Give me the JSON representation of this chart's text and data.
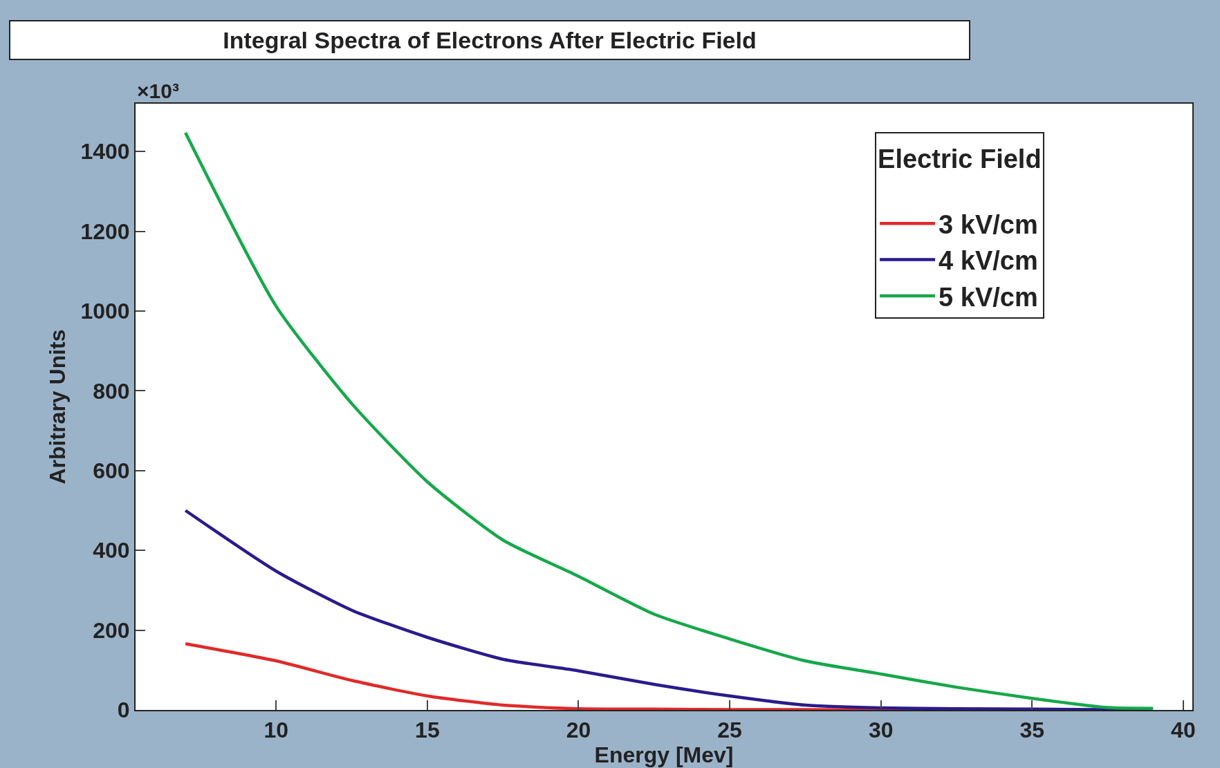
{
  "chart_data": {
    "type": "line",
    "title": "Integral Spectra of Electrons After Electric Field",
    "xlabel": "Energy [Mev]",
    "ylabel": "Arbitrary Units",
    "legend_title": "Electric Field",
    "annotations": [
      "×10³"
    ],
    "x": [
      7,
      10,
      12.5,
      15,
      17.5,
      20,
      22.5,
      25,
      27.5,
      30,
      32.5,
      35,
      37.5,
      39
    ],
    "series": [
      {
        "name": "3 kV/cm",
        "color": "#e02a2a",
        "values": [
          166,
          123,
          74,
          35,
          12,
          3,
          2,
          1,
          1,
          0,
          0,
          null,
          null,
          null
        ]
      },
      {
        "name": "4 kV/cm",
        "color": "#2a1b8c",
        "values": [
          500,
          348,
          250,
          182,
          127,
          98,
          64,
          35,
          12,
          5,
          3,
          2,
          1,
          1
        ]
      },
      {
        "name": "5 kV/cm",
        "color": "#16a84a",
        "values": [
          1447,
          1012,
          768,
          572,
          426,
          335,
          240,
          178,
          123,
          90,
          57,
          29,
          6,
          4
        ]
      }
    ],
    "xlim": [
      5.35,
      40.3
    ],
    "xticks": [
      10,
      15,
      20,
      25,
      30,
      35,
      40
    ],
    "ylim": [
      0,
      1520
    ],
    "yticks": [
      0,
      200,
      400,
      600,
      800,
      1000,
      1200,
      1400
    ],
    "grid": false,
    "legend": "top right",
    "line_style": "solid",
    "marker": "none"
  }
}
